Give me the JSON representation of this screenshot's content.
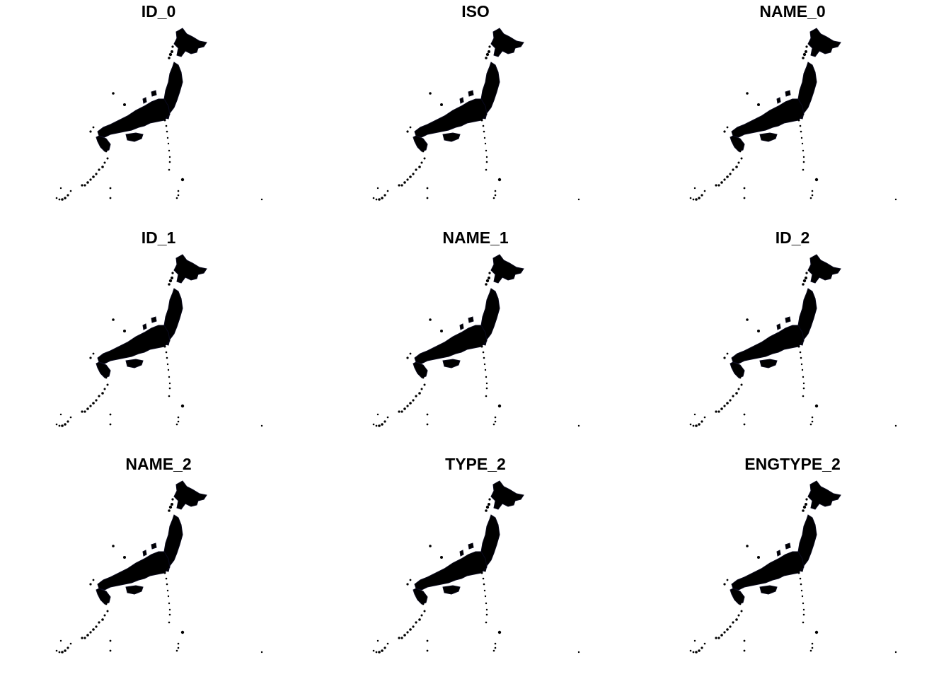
{
  "figure": {
    "panels": [
      {
        "title": "ID_0"
      },
      {
        "title": "ISO"
      },
      {
        "title": "NAME_0"
      },
      {
        "title": "ID_1"
      },
      {
        "title": "NAME_1"
      },
      {
        "title": "ID_2"
      },
      {
        "title": "NAME_2"
      },
      {
        "title": "TYPE_2"
      },
      {
        "title": "ENGTYPE_2"
      }
    ],
    "map_fill": "#000000",
    "map_tint": "#0a0a1e",
    "background": "#ffffff"
  }
}
